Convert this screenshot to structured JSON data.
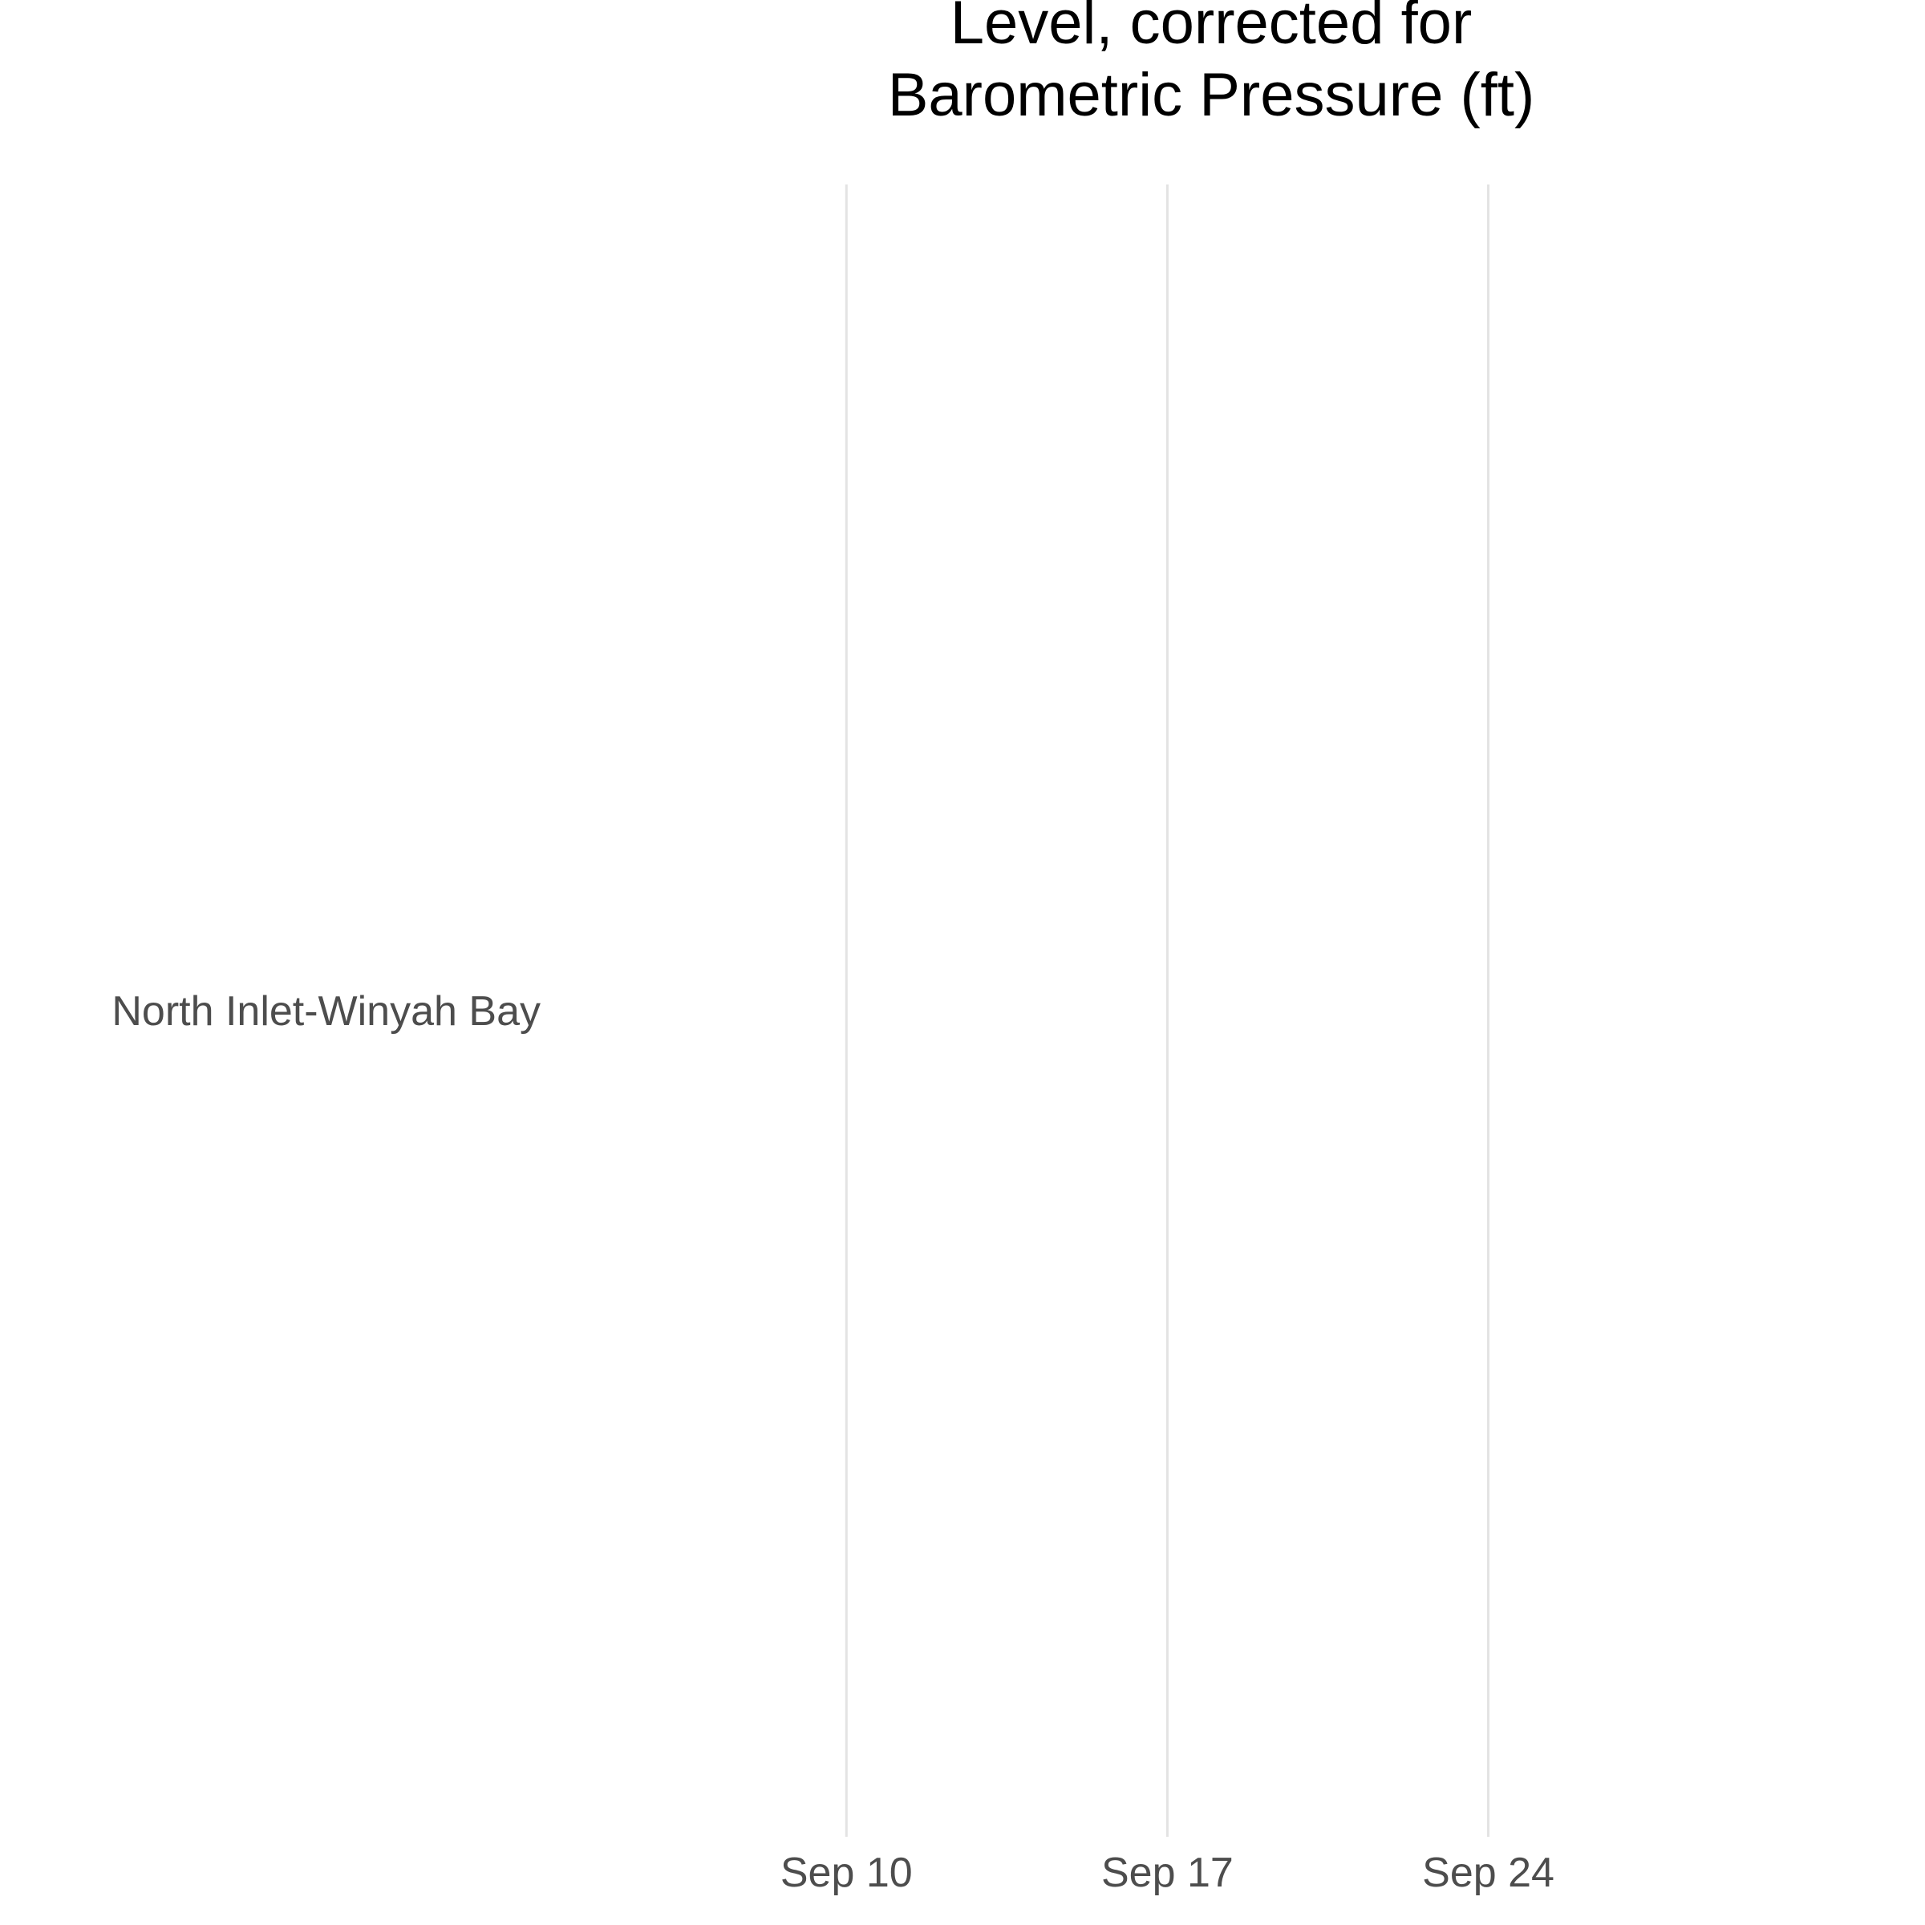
{
  "chart_data": {
    "type": "line",
    "title_lines": [
      "Level, corrected for",
      "Barometric Pressure (ft)"
    ],
    "xlabel": "",
    "ylabel": "",
    "x_axis_type": "date",
    "x_ticks": [
      "Sep 10",
      "Sep 17",
      "Sep 24"
    ],
    "x_tick_values": [
      "09-10",
      "09-17",
      "09-24"
    ],
    "x_range": [
      "09-02",
      "10-03"
    ],
    "y_categories": [
      "North Inlet-Winyah Bay"
    ],
    "series": [],
    "grid": "vertical major",
    "legend": "none",
    "colors": {
      "gridline": "#e3e3e3",
      "tick_text": "#4d4d4d",
      "title": "#000000",
      "background": "#ffffff"
    }
  }
}
